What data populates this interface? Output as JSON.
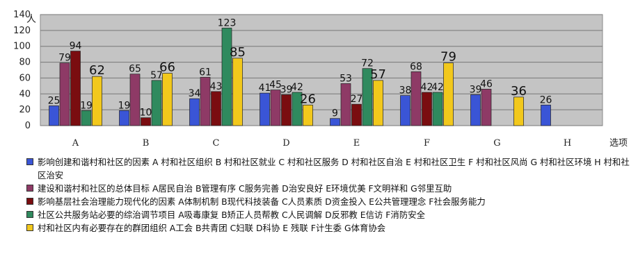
{
  "chart_data": {
    "type": "bar",
    "categories": [
      "A",
      "B",
      "C",
      "D",
      "E",
      "F",
      "G",
      "H"
    ],
    "x_axis_suffix": "选项",
    "y_axis_unit": "人",
    "ylim": [
      0,
      140
    ],
    "yticks": [
      0,
      20,
      40,
      60,
      80,
      100,
      120,
      140
    ],
    "grid": true,
    "legend_position": "bottom",
    "series": [
      {
        "name": "影响创建和谐村和社区的因素 A 村和社区组织 B 村和社区就业 C 村和社区服务 D 村和社区自治 E 村和社区卫生 F 村和社区风尚 G 村和社区环境 H 村和社区治安",
        "color": "#3a55d6",
        "values": [
          25,
          19,
          34,
          41,
          9,
          38,
          39,
          26
        ],
        "labels": [
          "25",
          "19",
          "34",
          "41",
          "9",
          "38",
          "39",
          "26"
        ]
      },
      {
        "name": "建设和谐村和社区的总体目标 A居民自治 B管理有序 C服务完善 D治安良好 E环境优美 F文明祥和 G邻里互助",
        "color": "#8e3a66",
        "values": [
          79,
          65,
          61,
          45,
          53,
          68,
          46,
          null
        ],
        "labels": [
          "79",
          "65",
          "61",
          "45",
          "53",
          "68",
          "46",
          ""
        ]
      },
      {
        "name": "影响基层社会治理能力现代化的因素 A体制机制 B现代科技装备 C人员素质 D资金投入 E公共管理理念 F社会服务能力",
        "color": "#7a0d10",
        "values": [
          94,
          10,
          43,
          39,
          27,
          42,
          null,
          null
        ],
        "labels": [
          "94",
          "10",
          "43",
          "39",
          "27",
          "42",
          "",
          ""
        ]
      },
      {
        "name": "社区公共服务站必要的综治调节项目 A吸毒康复 B矫正人员帮教 C人民调解 D反邪教 E信访 F消防安全",
        "color": "#2f8a5e",
        "values": [
          19,
          57,
          123,
          42,
          72,
          42,
          null,
          null
        ],
        "labels": [
          "19",
          "57",
          "123",
          "42",
          "72",
          "42",
          "",
          ""
        ]
      },
      {
        "name": "村和社区内有必要存在的群团组织 A工会 B共青团 C妇联 D科协 E 残联 F计生委 G体育协会",
        "color": "#f2c81c",
        "values": [
          62,
          66,
          85,
          26,
          57,
          79,
          36,
          null
        ],
        "labels": [
          "62",
          "66",
          "85",
          "26",
          "57",
          "79",
          "36",
          ""
        ]
      }
    ]
  }
}
